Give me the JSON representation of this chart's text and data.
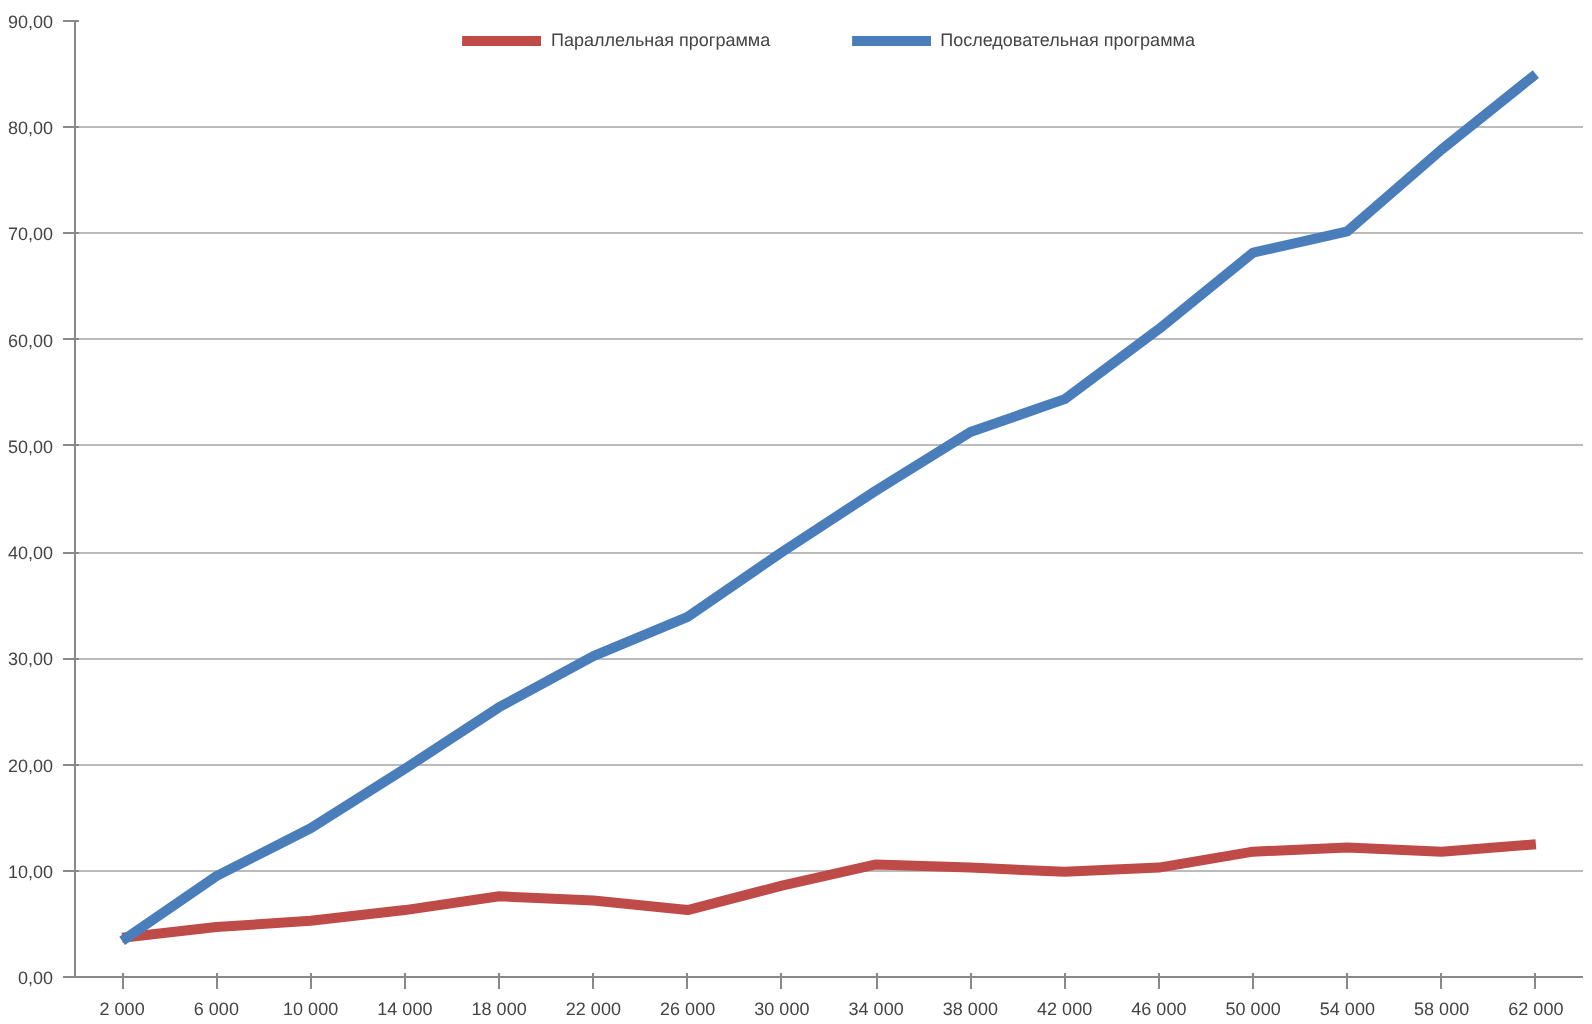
{
  "chart_data": {
    "type": "line",
    "categories": [
      "2 000",
      "6 000",
      "10 000",
      "14 000",
      "18 000",
      "22 000",
      "26 000",
      "30 000",
      "34 000",
      "38 000",
      "42 000",
      "46 000",
      "50 000",
      "54 000",
      "58 000",
      "62 000"
    ],
    "series": [
      {
        "name": "Параллельная программа",
        "color": "#be4b48",
        "values": [
          3.7,
          4.7,
          5.3,
          6.3,
          7.6,
          7.2,
          6.3,
          8.6,
          10.6,
          10.3,
          9.9,
          10.3,
          11.8,
          12.2,
          11.8,
          12.5
        ]
      },
      {
        "name": "Последовательная программа",
        "color": "#4a7ebb",
        "values": [
          3.4,
          9.5,
          14.0,
          19.6,
          25.4,
          30.2,
          33.9,
          40.0,
          45.8,
          51.3,
          54.4,
          61.0,
          68.2,
          70.2,
          77.9,
          85.0
        ]
      }
    ],
    "ylim": [
      0,
      90
    ],
    "yticks": [
      {
        "value": 0,
        "label": "0,00"
      },
      {
        "value": 10,
        "label": "10,00"
      },
      {
        "value": 20,
        "label": "20,00"
      },
      {
        "value": 30,
        "label": "30,00"
      },
      {
        "value": 40,
        "label": "40,00"
      },
      {
        "value": 50,
        "label": "50,00"
      },
      {
        "value": 60,
        "label": "60,00"
      },
      {
        "value": 70,
        "label": "70,00"
      },
      {
        "value": 80,
        "label": "80,00"
      },
      {
        "value": 90,
        "label": "90,00"
      }
    ],
    "grid": "y",
    "legend": "top",
    "marker": "none",
    "line_style": "solid"
  }
}
